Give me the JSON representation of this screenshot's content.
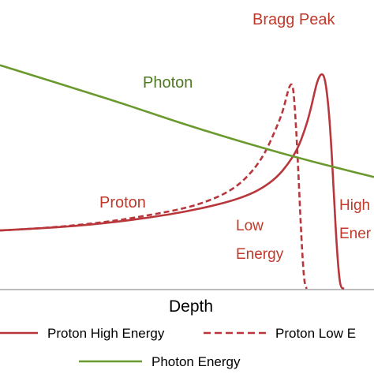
{
  "chart_data": {
    "type": "line",
    "xlabel": "Depth",
    "ylabel": "",
    "xlim": [
      0,
      100
    ],
    "ylim": [
      0,
      100
    ],
    "grid": false,
    "legend_position": "bottom",
    "annotations": {
      "bragg_peak": "Bragg Peak",
      "photon": "Photon",
      "proton": "Proton",
      "low_energy_line1": "Low",
      "low_energy_line2": "Energy",
      "high_energy_line1": "High",
      "high_energy_line2": "Ener"
    },
    "series": [
      {
        "name": "Proton High Energy",
        "color": "#b8373c",
        "dash": "solid",
        "points": [
          [
            0,
            24
          ],
          [
            10,
            24.8
          ],
          [
            20,
            25.8
          ],
          [
            30,
            27.3
          ],
          [
            40,
            29.3
          ],
          [
            50,
            31.8
          ],
          [
            60,
            35.3
          ],
          [
            66,
            38.3
          ],
          [
            70,
            41.3
          ],
          [
            74,
            45.8
          ],
          [
            77,
            51.3
          ],
          [
            79.5,
            57.3
          ],
          [
            81.5,
            65.3
          ],
          [
            83,
            73.3
          ],
          [
            84,
            80.3
          ],
          [
            85,
            86.3
          ],
          [
            86,
            88.8
          ],
          [
            86.9,
            86.8
          ],
          [
            87.9,
            74.3
          ],
          [
            88.6,
            58.3
          ],
          [
            89.3,
            38.3
          ],
          [
            90,
            18.3
          ],
          [
            90.6,
            6.3
          ],
          [
            91.1,
            0.5
          ],
          [
            92,
            0
          ]
        ]
      },
      {
        "name": "Proton Low E",
        "color": "#b8373c",
        "dash": "dashed",
        "points": [
          [
            0,
            24
          ],
          [
            10,
            24.8
          ],
          [
            20,
            26.1
          ],
          [
            30,
            27.8
          ],
          [
            40,
            30.3
          ],
          [
            50,
            33.3
          ],
          [
            56,
            36.3
          ],
          [
            61,
            39.8
          ],
          [
            65,
            44.3
          ],
          [
            68.5,
            50.3
          ],
          [
            71,
            56.3
          ],
          [
            73.5,
            64.8
          ],
          [
            75.5,
            72.3
          ],
          [
            76.8,
            80.3
          ],
          [
            77.5,
            83.8
          ],
          [
            78.1,
            84.3
          ],
          [
            78.5,
            81.3
          ],
          [
            79.1,
            68.3
          ],
          [
            79.7,
            50.3
          ],
          [
            80.3,
            30.3
          ],
          [
            80.9,
            12.3
          ],
          [
            81.4,
            2.3
          ],
          [
            82,
            0
          ]
        ]
      },
      {
        "name": "Photon Energy",
        "color": "#6a9a2e",
        "dash": "solid",
        "points": [
          [
            0,
            92
          ],
          [
            10,
            87.2
          ],
          [
            20,
            82.4
          ],
          [
            30,
            77.6
          ],
          [
            40,
            72.5
          ],
          [
            50,
            67.4
          ],
          [
            60,
            62.6
          ],
          [
            70,
            58.1
          ],
          [
            80,
            53.8
          ],
          [
            90,
            49.8
          ],
          [
            100,
            46
          ]
        ]
      }
    ]
  },
  "legend": {
    "items": [
      {
        "label": "Proton High Energy"
      },
      {
        "label": "Proton Low E"
      },
      {
        "label": "Photon Energy"
      }
    ]
  }
}
